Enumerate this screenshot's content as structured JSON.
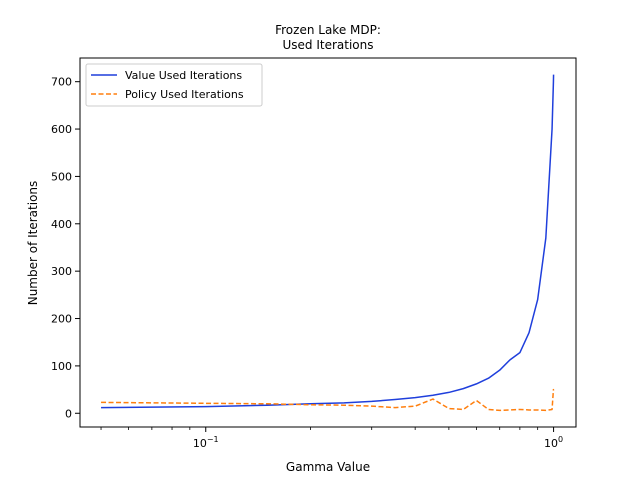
{
  "chart_data": {
    "type": "line",
    "title": [
      "Frozen Lake MDP:",
      "Used Iterations"
    ],
    "xlabel": "Gamma Value",
    "ylabel": "Number of Iterations",
    "xscale": "log",
    "xlim": [
      0.0435,
      1.16
    ],
    "ylim": [
      -29,
      750
    ],
    "xticks": [
      {
        "value": 0.1,
        "base": "10",
        "exp": "−1"
      },
      {
        "value": 1.0,
        "base": "10",
        "exp": "0"
      }
    ],
    "minor_xticks": [
      0.05,
      0.06,
      0.07,
      0.08,
      0.09,
      0.2,
      0.3,
      0.4,
      0.5,
      0.6,
      0.7,
      0.8,
      0.9
    ],
    "yticks": [
      0,
      100,
      200,
      300,
      400,
      500,
      600,
      700
    ],
    "ytick_labels": [
      "0",
      "100",
      "200",
      "300",
      "400",
      "500",
      "600",
      "700"
    ],
    "grid": false,
    "legend_position": "upper-left",
    "colors": {
      "value": "#1f3fdc",
      "policy": "#ff7f0e"
    },
    "series": [
      {
        "name": "Value Used Iterations",
        "style": "solid",
        "x": [
          0.05,
          0.1,
          0.15,
          0.2,
          0.25,
          0.3,
          0.35,
          0.4,
          0.45,
          0.5,
          0.55,
          0.6,
          0.65,
          0.7,
          0.75,
          0.8,
          0.85,
          0.9,
          0.95,
          0.99,
          0.999,
          0.9999
        ],
        "values": [
          12,
          14,
          17,
          20,
          22,
          25,
          29,
          33,
          38,
          44,
          52,
          62,
          74,
          91,
          113,
          128,
          170,
          240,
          370,
          600,
          700,
          715
        ]
      },
      {
        "name": "Policy Used Iterations",
        "style": "dashed",
        "x": [
          0.05,
          0.1,
          0.15,
          0.2,
          0.25,
          0.3,
          0.35,
          0.4,
          0.45,
          0.5,
          0.55,
          0.6,
          0.65,
          0.7,
          0.75,
          0.8,
          0.85,
          0.9,
          0.95,
          0.99,
          0.999,
          0.9999
        ],
        "values": [
          23,
          21,
          20,
          18,
          17,
          15,
          12,
          15,
          30,
          10,
          8,
          27,
          8,
          6,
          7,
          8,
          7,
          7,
          6,
          8,
          50,
          48
        ]
      }
    ]
  }
}
